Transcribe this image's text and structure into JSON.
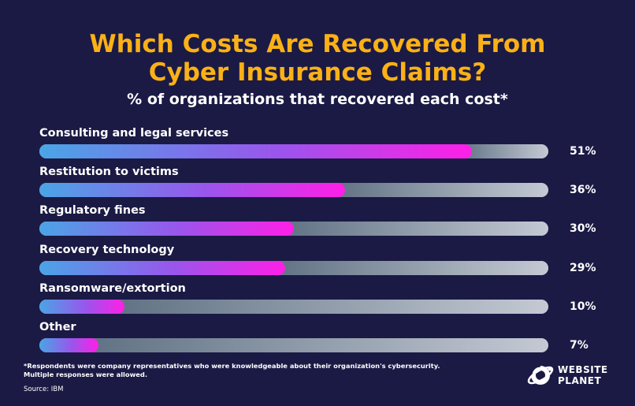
{
  "header": {
    "title_line1": "Which Costs Are Recovered From",
    "title_line2": "Cyber Insurance Claims?",
    "subtitle": "% of organizations that recovered each cost*"
  },
  "chart_data": {
    "type": "bar",
    "orientation": "horizontal",
    "categories": [
      "Consulting and legal services",
      "Restitution to victims",
      "Regulatory fines",
      "Recovery technology",
      "Ransomware/extortion",
      "Other"
    ],
    "values": [
      51,
      36,
      30,
      29,
      10,
      7
    ],
    "value_labels": [
      "51%",
      "36%",
      "30%",
      "29%",
      "10%",
      "7%"
    ],
    "title": "Which Costs Are Recovered From Cyber Insurance Claims?",
    "subtitle": "% of organizations that recovered each cost*",
    "xlim": [
      0,
      60
    ],
    "grid": false
  },
  "footer": {
    "footnote_line1": "*Respondents were company representatives who were knowledgeable about their organization's cybersecurity.",
    "footnote_line2": "Multiple responses were allowed.",
    "source": "Source: IBM"
  },
  "logo": {
    "line1": "WEBSITE",
    "line2": "PLANET",
    "icon": "planet-logo-icon"
  },
  "colors": {
    "background": "#1b1a45",
    "title": "#fbb116",
    "fill_start": "#4aa5e6",
    "fill_end": "#ff1fe7",
    "track": "#c4c9d3"
  }
}
